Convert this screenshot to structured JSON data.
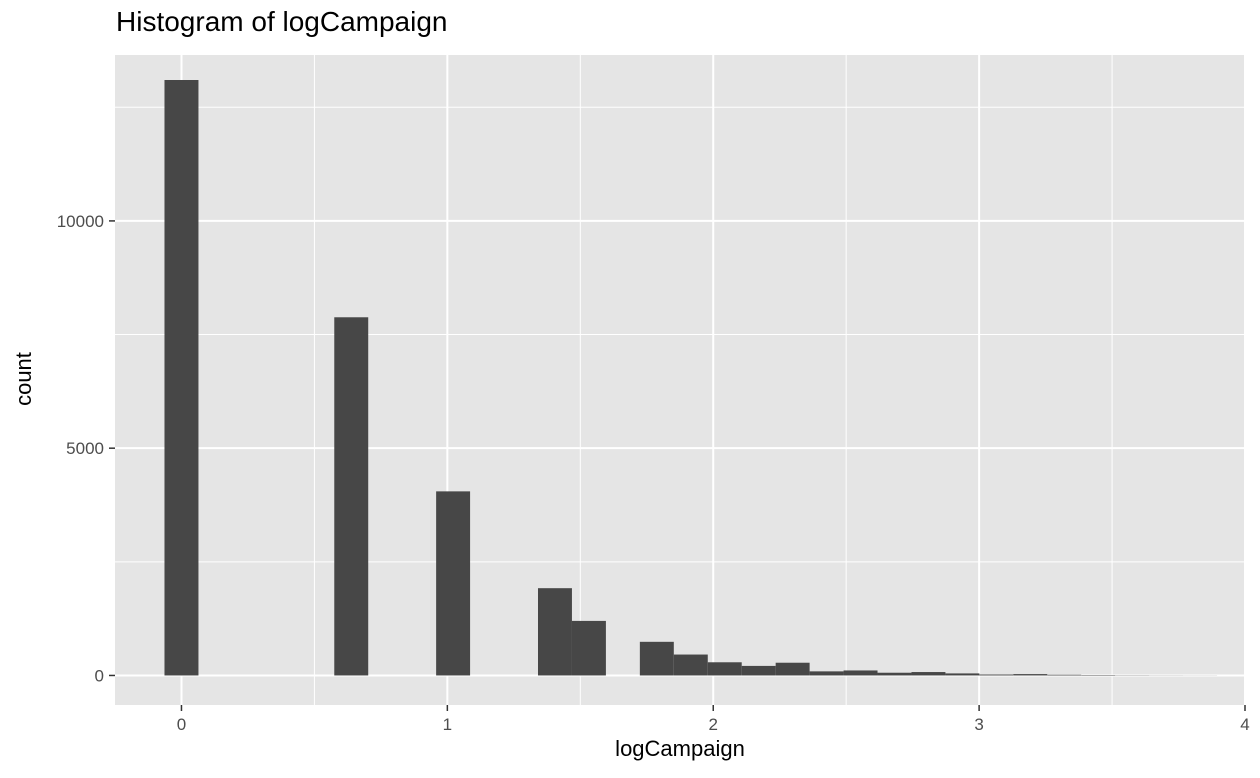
{
  "chart_data": {
    "type": "bar",
    "title": "Histogram of logCampaign",
    "xlabel": "logCampaign",
    "ylabel": "count",
    "xlim": [
      -0.25,
      4.0
    ],
    "ylim": [
      -650,
      13650
    ],
    "x_ticks": [
      0,
      1,
      2,
      3,
      4
    ],
    "x_tick_labels": [
      "0",
      "1",
      "2",
      "3",
      "4"
    ],
    "y_ticks": [
      0,
      5000,
      10000
    ],
    "y_tick_labels": [
      "0",
      "5000",
      "10000"
    ],
    "grid": true,
    "bin_width": 0.1277,
    "bins": [
      {
        "x_start": -0.0639,
        "x_end": 0.0639,
        "count": 13100
      },
      {
        "x_start": 0.5747,
        "x_end": 0.7024,
        "count": 7880
      },
      {
        "x_start": 0.9578,
        "x_end": 1.0855,
        "count": 4050
      },
      {
        "x_start": 1.3409,
        "x_end": 1.4686,
        "count": 1920
      },
      {
        "x_start": 1.4686,
        "x_end": 1.5963,
        "count": 1200
      },
      {
        "x_start": 1.724,
        "x_end": 1.8517,
        "count": 740
      },
      {
        "x_start": 1.8517,
        "x_end": 1.9794,
        "count": 460
      },
      {
        "x_start": 1.9794,
        "x_end": 2.1071,
        "count": 290
      },
      {
        "x_start": 2.1071,
        "x_end": 2.2348,
        "count": 210
      },
      {
        "x_start": 2.2348,
        "x_end": 2.3625,
        "count": 280
      },
      {
        "x_start": 2.3625,
        "x_end": 2.4902,
        "count": 90
      },
      {
        "x_start": 2.4902,
        "x_end": 2.6179,
        "count": 110
      },
      {
        "x_start": 2.6179,
        "x_end": 2.7456,
        "count": 60
      },
      {
        "x_start": 2.7456,
        "x_end": 2.8733,
        "count": 75
      },
      {
        "x_start": 2.8733,
        "x_end": 3.001,
        "count": 45
      },
      {
        "x_start": 3.001,
        "x_end": 3.1287,
        "count": 20
      },
      {
        "x_start": 3.1287,
        "x_end": 3.2564,
        "count": 30
      },
      {
        "x_start": 3.2564,
        "x_end": 3.3841,
        "count": 15
      },
      {
        "x_start": 3.3841,
        "x_end": 3.5118,
        "count": 10
      },
      {
        "x_start": 3.5118,
        "x_end": 3.6395,
        "count": 5
      },
      {
        "x_start": 3.6395,
        "x_end": 3.7672,
        "count": 3
      },
      {
        "x_start": 3.7672,
        "x_end": 3.8949,
        "count": 2
      }
    ],
    "colors": {
      "panel": "#e5e5e5",
      "grid": "#ffffff",
      "bar": "#474747"
    }
  }
}
